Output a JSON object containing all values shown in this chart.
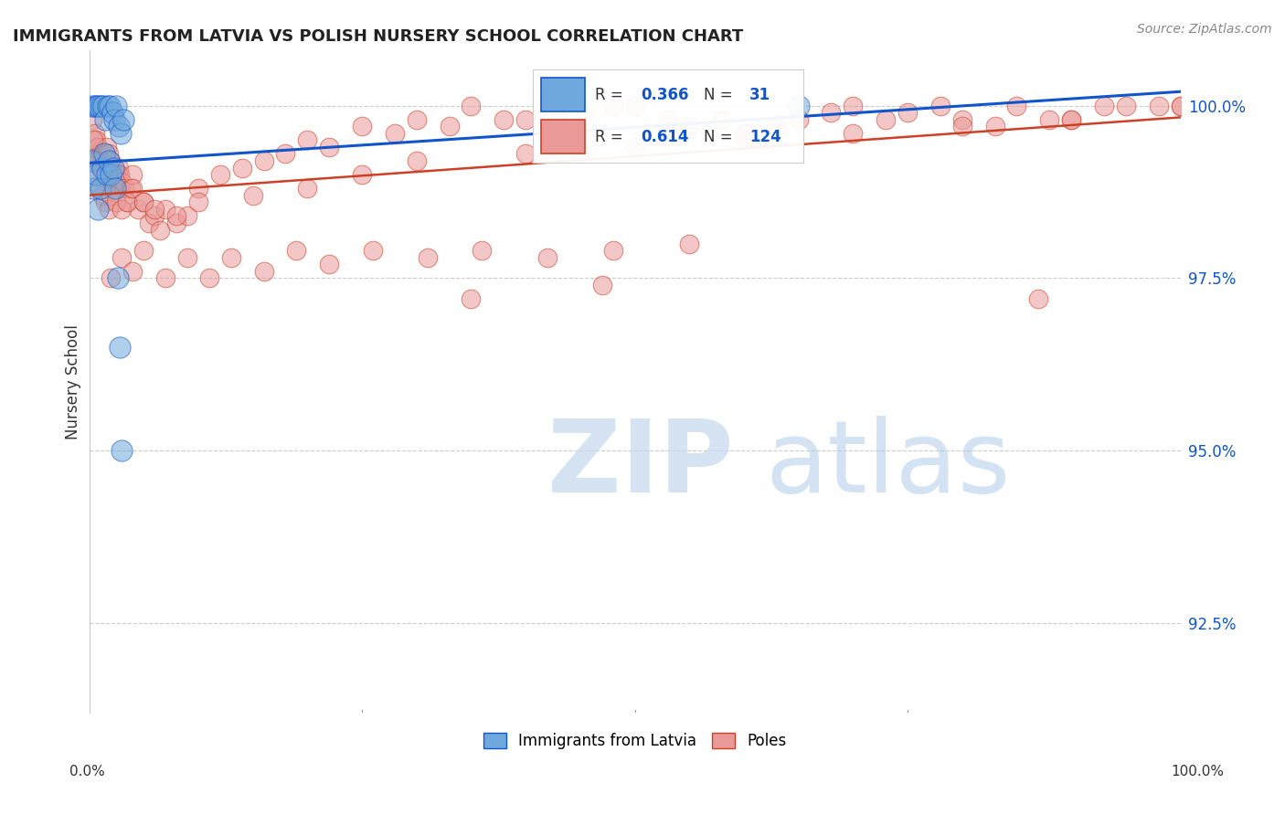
{
  "title": "IMMIGRANTS FROM LATVIA VS POLISH NURSERY SCHOOL CORRELATION CHART",
  "source": "Source: ZipAtlas.com",
  "ylabel": "Nursery School",
  "y_ticks": [
    92.5,
    95.0,
    97.5,
    100.0
  ],
  "legend_labels": [
    "Immigrants from Latvia",
    "Poles"
  ],
  "legend_R": [
    0.366,
    0.614
  ],
  "legend_N": [
    31,
    124
  ],
  "blue_color": "#6fa8dc",
  "pink_color": "#ea9999",
  "blue_line_color": "#1155cc",
  "pink_line_color": "#cc4125",
  "background_color": "#ffffff",
  "blue_x": [
    0.3,
    0.5,
    0.7,
    0.9,
    1.1,
    1.3,
    1.5,
    1.7,
    1.9,
    2.1,
    2.3,
    2.5,
    2.7,
    2.9,
    3.1,
    0.2,
    0.4,
    0.6,
    0.8,
    1.0,
    1.2,
    1.4,
    1.6,
    1.8,
    2.0,
    2.2,
    2.4,
    2.6,
    2.8,
    3.0,
    65.0
  ],
  "blue_y": [
    100.0,
    100.0,
    100.0,
    100.0,
    100.0,
    100.0,
    99.8,
    100.0,
    100.0,
    99.9,
    99.8,
    100.0,
    99.7,
    99.6,
    99.8,
    99.2,
    98.8,
    99.0,
    98.5,
    98.8,
    99.1,
    99.3,
    99.0,
    99.2,
    99.0,
    99.1,
    98.8,
    97.5,
    96.5,
    95.0,
    100.0
  ],
  "pink_x": [
    0.3,
    0.5,
    0.6,
    0.7,
    0.8,
    0.9,
    1.0,
    1.1,
    1.2,
    1.3,
    1.4,
    1.5,
    1.6,
    1.7,
    1.8,
    1.9,
    2.0,
    2.1,
    2.2,
    2.3,
    2.4,
    2.5,
    2.6,
    2.7,
    2.8,
    2.9,
    3.0,
    3.2,
    3.5,
    3.8,
    4.0,
    4.5,
    5.0,
    5.5,
    6.0,
    6.5,
    7.0,
    8.0,
    9.0,
    10.0,
    12.0,
    14.0,
    16.0,
    18.0,
    20.0,
    22.0,
    25.0,
    28.0,
    30.0,
    33.0,
    35.0,
    38.0,
    40.0,
    43.0,
    45.0,
    48.0,
    50.0,
    53.0,
    55.0,
    58.0,
    60.0,
    63.0,
    65.0,
    68.0,
    70.0,
    73.0,
    75.0,
    78.0,
    80.0,
    83.0,
    85.0,
    88.0,
    90.0,
    93.0,
    95.0,
    98.0,
    100.0,
    0.4,
    0.6,
    0.8,
    1.0,
    1.2,
    1.5,
    1.8,
    2.0,
    2.5,
    3.0,
    3.5,
    4.0,
    5.0,
    6.0,
    8.0,
    10.0,
    15.0,
    20.0,
    25.0,
    30.0,
    40.0,
    50.0,
    60.0,
    70.0,
    80.0,
    90.0,
    100.0,
    2.0,
    3.0,
    4.0,
    5.0,
    7.0,
    9.0,
    11.0,
    13.0,
    16.0,
    19.0,
    22.0,
    26.0,
    31.0,
    36.0,
    42.0,
    48.0,
    55.0,
    35.0,
    47.0,
    87.0
  ],
  "pink_y": [
    99.8,
    99.6,
    99.5,
    99.3,
    99.4,
    99.2,
    99.3,
    99.2,
    99.1,
    99.3,
    99.2,
    99.3,
    99.4,
    99.2,
    99.3,
    99.1,
    99.2,
    99.0,
    99.1,
    99.0,
    98.9,
    99.0,
    99.0,
    99.1,
    99.0,
    98.8,
    98.9,
    98.8,
    98.6,
    98.8,
    99.0,
    98.5,
    98.6,
    98.3,
    98.4,
    98.2,
    98.5,
    98.3,
    98.4,
    98.8,
    99.0,
    99.1,
    99.2,
    99.3,
    99.5,
    99.4,
    99.7,
    99.6,
    99.8,
    99.7,
    100.0,
    99.8,
    99.8,
    99.9,
    99.9,
    100.0,
    100.0,
    99.8,
    99.7,
    99.8,
    99.6,
    99.7,
    99.8,
    99.9,
    100.0,
    99.8,
    99.9,
    100.0,
    99.8,
    99.7,
    100.0,
    99.8,
    99.8,
    100.0,
    100.0,
    100.0,
    100.0,
    99.5,
    99.2,
    99.0,
    98.8,
    98.7,
    98.6,
    98.5,
    98.7,
    98.6,
    98.5,
    98.6,
    98.8,
    98.6,
    98.5,
    98.4,
    98.6,
    98.7,
    98.8,
    99.0,
    99.2,
    99.3,
    99.4,
    99.5,
    99.6,
    99.7,
    99.8,
    100.0,
    97.5,
    97.8,
    97.6,
    97.9,
    97.5,
    97.8,
    97.5,
    97.8,
    97.6,
    97.9,
    97.7,
    97.9,
    97.8,
    97.9,
    97.8,
    97.9,
    98.0,
    97.2,
    97.4,
    97.2
  ]
}
